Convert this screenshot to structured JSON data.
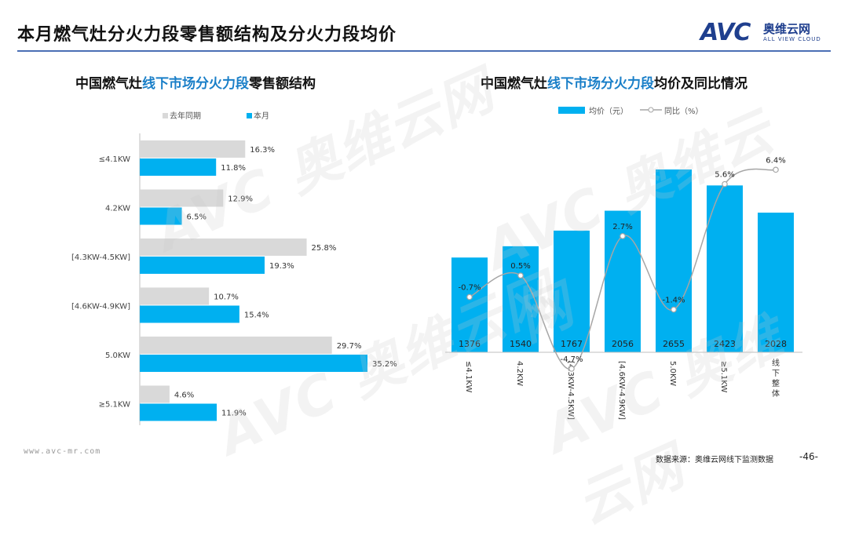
{
  "page": {
    "title": "本月燃气灶分火力段零售额结构及分火力段均价",
    "logo_mark": "AVC",
    "logo_cn": "奥维云网",
    "logo_en": "ALL VIEW CLOUD",
    "watermark": "AVC 奥维云网",
    "footer_website": "www.avc-mr.com",
    "footer_source": "数据来源：奥维云网线下监测数据",
    "page_number": "-46-"
  },
  "left_title": {
    "part1": "中国燃气灶",
    "part2": "线下市场分火力段",
    "part3": "零售额结构"
  },
  "right_title": {
    "part1": "中国燃气灶",
    "part2": "线下市场分火力段",
    "part3": "均价及同比情况"
  },
  "colors": {
    "current": "#00b0f0",
    "last_year": "#d9d9d9",
    "yoy_line": "#a6a6a6",
    "title_accent": "#1a7fc8",
    "rule": "#4a6fb5"
  },
  "chart_data": [
    {
      "type": "bar",
      "orientation": "horizontal",
      "title": "中国燃气灶线下市场分火力段零售额结构",
      "categories": [
        "≤4.1KW",
        "4.2KW",
        "[4.3KW-4.5KW]",
        "[4.6KW-4.9KW]",
        "5.0KW",
        "≥5.1KW"
      ],
      "series": [
        {
          "name": "去年同期",
          "values": [
            16.3,
            12.9,
            25.8,
            10.7,
            29.7,
            4.6
          ],
          "labels": [
            "16.3%",
            "12.9%",
            "25.8%",
            "10.7%",
            "29.7%",
            "4.6%"
          ]
        },
        {
          "name": "本月",
          "values": [
            11.8,
            6.5,
            19.3,
            15.4,
            35.2,
            11.9
          ],
          "labels": [
            "11.8%",
            "6.5%",
            "19.3%",
            "15.4%",
            "35.2%",
            "11.9%"
          ]
        }
      ],
      "xlim": [
        0,
        40
      ],
      "legend": "top-left"
    },
    {
      "type": "bar+line",
      "title": "中国燃气灶线下市场分火力段均价及同比情况",
      "categories": [
        "≤4.1KW",
        "4.2KW",
        "[4.3KW-4.5KW]",
        "[4.6KW-4.9KW]",
        "5.0KW",
        "≥5.1KW",
        "线下整体"
      ],
      "series": [
        {
          "name": "均价（元）",
          "type": "bar",
          "values": [
            1376,
            1540,
            1767,
            2056,
            2655,
            2423,
            2028
          ],
          "labels": [
            "1376",
            "1540",
            "1767",
            "2056",
            "2655",
            "2423",
            "2028"
          ]
        },
        {
          "name": "同比（%）",
          "type": "line",
          "values": [
            -0.7,
            0.5,
            -4.7,
            2.7,
            -1.4,
            5.6,
            6.4
          ],
          "labels": [
            "-0.7%",
            "0.5%",
            "-4.7%",
            "2.7%",
            "-1.4%",
            "5.6%",
            "6.4%"
          ]
        }
      ],
      "ylim_bar": [
        0,
        3000
      ],
      "ylim_line": [
        -6,
        9
      ],
      "legend": "top-left"
    }
  ]
}
